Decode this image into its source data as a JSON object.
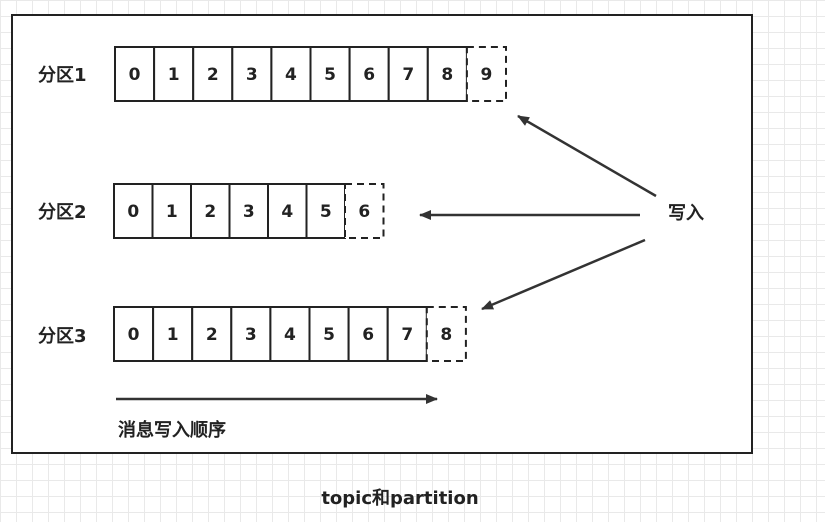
{
  "partitions": [
    {
      "label": "分区1",
      "cells": [
        "0",
        "1",
        "2",
        "3",
        "4",
        "5",
        "6",
        "7",
        "8"
      ],
      "next": "9"
    },
    {
      "label": "分区2",
      "cells": [
        "0",
        "1",
        "2",
        "3",
        "4",
        "5"
      ],
      "next": "6"
    },
    {
      "label": "分区3",
      "cells": [
        "0",
        "1",
        "2",
        "3",
        "4",
        "5",
        "6",
        "7"
      ],
      "next": "8"
    }
  ],
  "write_label": "写入",
  "order_label": "消息写入顺序",
  "caption": "topic和partition",
  "colors": {
    "stroke": "#222222",
    "arrow": "#333333"
  }
}
